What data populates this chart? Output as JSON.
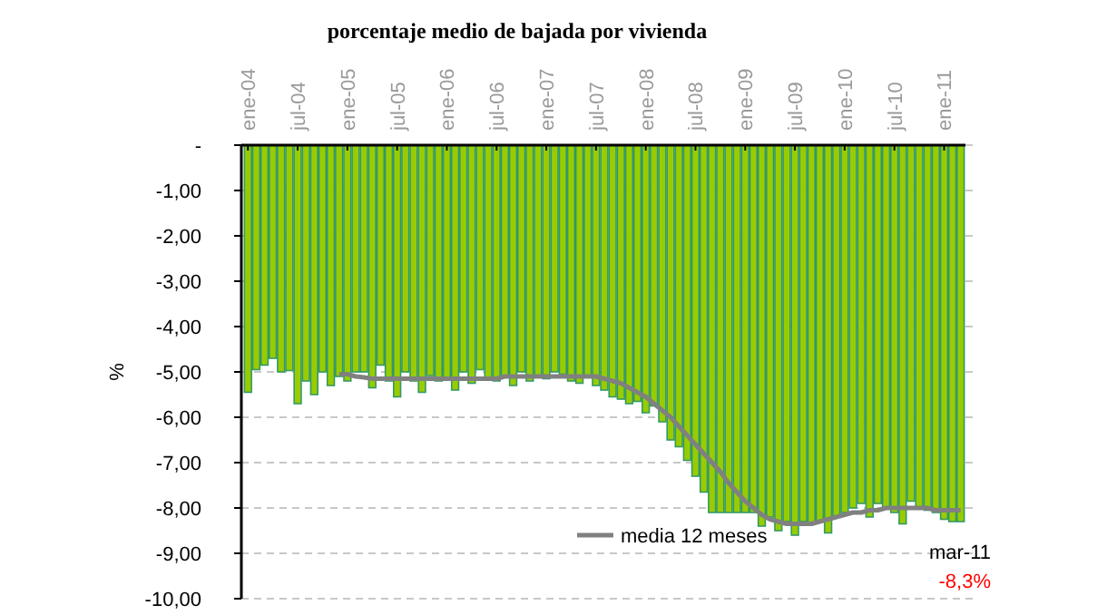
{
  "chart_data": {
    "type": "bar",
    "title": "porcentaje medio de bajada por vivienda",
    "ylabel": "%",
    "categories": [
      "ene-04",
      null,
      null,
      null,
      null,
      null,
      "jul-04",
      null,
      null,
      null,
      null,
      null,
      "ene-05",
      null,
      null,
      null,
      null,
      null,
      "jul-05",
      null,
      null,
      null,
      null,
      null,
      "ene-06",
      null,
      null,
      null,
      null,
      null,
      "jul-06",
      null,
      null,
      null,
      null,
      null,
      "ene-07",
      null,
      null,
      null,
      null,
      null,
      "jul-07",
      null,
      null,
      null,
      null,
      null,
      "ene-08",
      null,
      null,
      null,
      null,
      null,
      "jul-08",
      null,
      null,
      null,
      null,
      null,
      "ene-09",
      null,
      null,
      null,
      null,
      null,
      "jul-09",
      null,
      null,
      null,
      null,
      null,
      "ene-10",
      null,
      null,
      null,
      null,
      null,
      "jul-10",
      null,
      null,
      null,
      null,
      null,
      "ene-11",
      null,
      null
    ],
    "series": [
      {
        "color": "#99cc00",
        "values": [
          -5.45,
          -4.95,
          -4.85,
          -4.7,
          -5.0,
          -4.97,
          -5.7,
          -5.2,
          -5.5,
          -5.0,
          -5.3,
          -5.1,
          -5.2,
          -5.0,
          -5.0,
          -5.35,
          -4.85,
          -5.2,
          -5.55,
          -5.0,
          -5.2,
          -5.45,
          -5.08,
          -5.2,
          -5.17,
          -5.4,
          -5.0,
          -5.25,
          -4.95,
          -5.15,
          -5.2,
          -5.1,
          -5.3,
          -5.0,
          -5.2,
          -5.1,
          -5.15,
          -5.0,
          -5.05,
          -5.2,
          -5.25,
          -5.1,
          -5.3,
          -5.4,
          -5.55,
          -5.6,
          -5.7,
          -5.65,
          -5.9,
          -5.75,
          -6.1,
          -6.5,
          -6.65,
          -6.95,
          -7.3,
          -7.65,
          -8.1,
          -8.1,
          -8.1,
          -8.1,
          -8.1,
          -8.1,
          -8.4,
          -8.2,
          -8.5,
          -8.3,
          -8.6,
          -8.3,
          -8.35,
          -8.3,
          -8.55,
          -8.2,
          -8.1,
          -8.0,
          -7.9,
          -8.2,
          -7.9,
          -8.0,
          -8.1,
          -8.35,
          -7.85,
          -8.0,
          -8.05,
          -8.1,
          -8.25,
          -8.3,
          -8.3
        ]
      },
      {
        "type": "line",
        "name": "media 12 meses",
        "color": "#808080",
        "values": [
          null,
          null,
          null,
          null,
          null,
          null,
          null,
          null,
          null,
          null,
          null,
          -5.05,
          -5.05,
          -5.1,
          -5.12,
          -5.15,
          -5.15,
          -5.15,
          -5.15,
          -5.15,
          -5.15,
          -5.15,
          -5.15,
          -5.15,
          -5.15,
          -5.15,
          -5.15,
          -5.15,
          -5.15,
          -5.15,
          -5.15,
          -5.1,
          -5.1,
          -5.1,
          -5.1,
          -5.1,
          -5.1,
          -5.1,
          -5.1,
          -5.1,
          -5.1,
          -5.1,
          -5.1,
          -5.15,
          -5.2,
          -5.25,
          -5.35,
          -5.45,
          -5.55,
          -5.7,
          -5.85,
          -6.0,
          -6.2,
          -6.4,
          -6.6,
          -6.8,
          -7.0,
          -7.2,
          -7.45,
          -7.65,
          -7.85,
          -8.0,
          -8.15,
          -8.25,
          -8.3,
          -8.35,
          -8.35,
          -8.35,
          -8.35,
          -8.3,
          -8.25,
          -8.2,
          -8.15,
          -8.1,
          -8.1,
          -8.05,
          -8.05,
          -8.0,
          -8.0,
          -8.0,
          -8.0,
          -8.0,
          -8.0,
          -8.05,
          -8.05,
          -8.05,
          -8.05
        ]
      }
    ],
    "ylim": [
      -10,
      0
    ],
    "yticks": [
      {
        "value": 0,
        "label": "-"
      },
      {
        "value": -1,
        "label": "-1,00"
      },
      {
        "value": -2,
        "label": "-2,00"
      },
      {
        "value": -3,
        "label": "-3,00"
      },
      {
        "value": -4,
        "label": "-4,00"
      },
      {
        "value": -5,
        "label": "-5,00"
      },
      {
        "value": -6,
        "label": "-6,00"
      },
      {
        "value": -7,
        "label": "-7,00"
      },
      {
        "value": -8,
        "label": "-8,00"
      },
      {
        "value": -9,
        "label": "-9,00"
      },
      {
        "value": -10,
        "label": "-10,00"
      }
    ],
    "grid": "y",
    "legend": "bottom",
    "annotations": [
      "mar-11",
      "-8,3%"
    ]
  }
}
